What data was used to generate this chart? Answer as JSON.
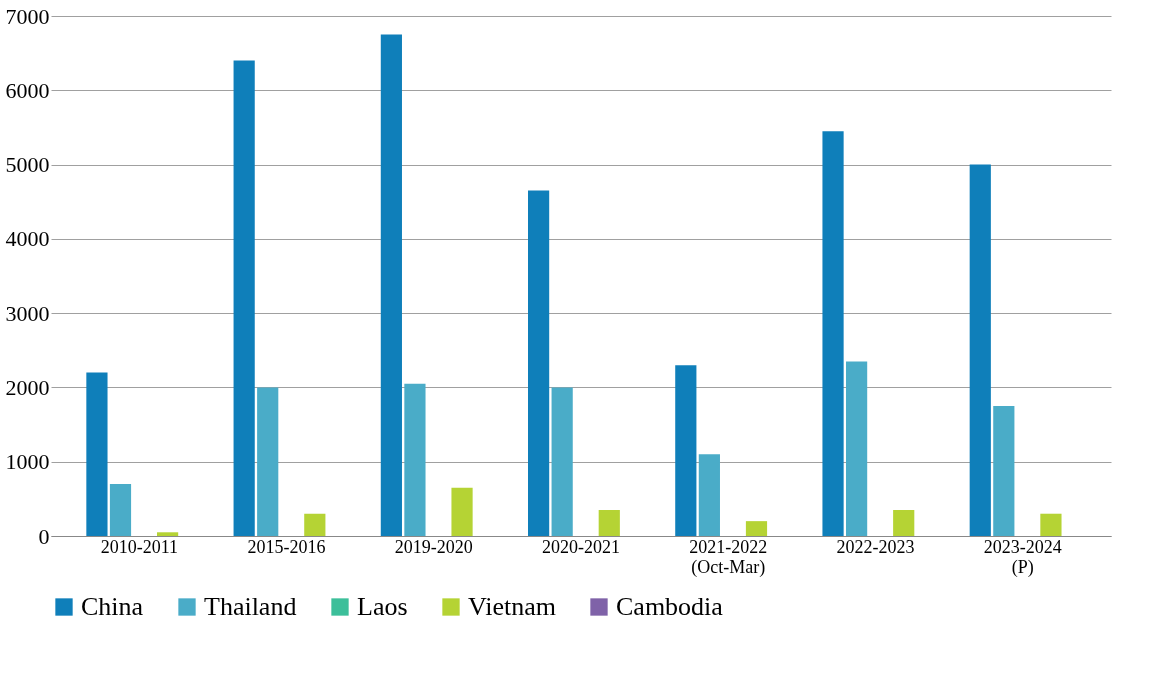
{
  "chart_data": {
    "type": "bar",
    "categories": [
      "2010-2011",
      "2015-2016",
      "2019-2020",
      "2020-2021",
      "2021-2022 (Oct-Mar)",
      "2022-2023",
      "2023-2024 (P)"
    ],
    "series": [
      {
        "name": "China",
        "color": "#0f7fba",
        "values": [
          2200,
          6400,
          6750,
          4650,
          2300,
          5450,
          5000
        ]
      },
      {
        "name": "Thailand",
        "color": "#4aacc8",
        "values": [
          700,
          2000,
          2050,
          2000,
          1100,
          2350,
          1750
        ]
      },
      {
        "name": "Laos",
        "color": "#3cbf9a",
        "values": [
          0,
          0,
          0,
          0,
          0,
          0,
          0
        ]
      },
      {
        "name": "Vietnam",
        "color": "#b5d334",
        "values": [
          50,
          300,
          650,
          350,
          200,
          350,
          300
        ]
      },
      {
        "name": "Cambodia",
        "color": "#7f62a8",
        "values": [
          0,
          0,
          0,
          0,
          0,
          0,
          0
        ]
      }
    ],
    "ylim": [
      0,
      7000
    ],
    "yticks": [
      0,
      1000,
      2000,
      3000,
      4000,
      5000,
      6000,
      7000
    ],
    "grid": "y",
    "legend": "bottom"
  }
}
